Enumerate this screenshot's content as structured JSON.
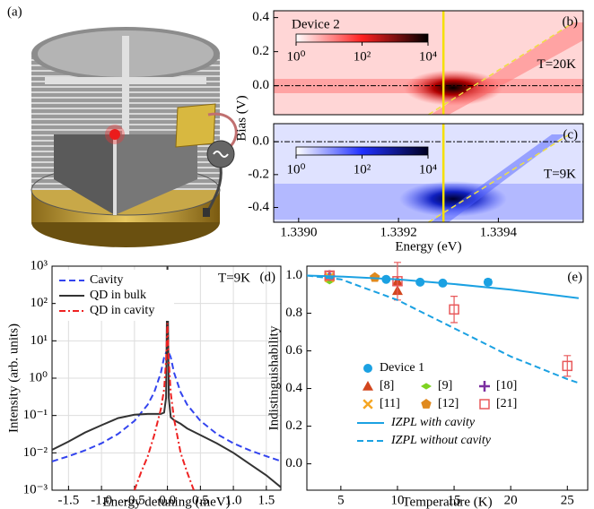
{
  "chart_data": [
    {
      "type": "image",
      "panel_label": "(a)"
    },
    {
      "type": "heatmap",
      "panel_label": "(b)",
      "ylabel": "Bias (V)",
      "xlim": [
        1.33895,
        1.33957
      ],
      "ylim": [
        -0.17,
        0.44
      ],
      "yticks": [
        {
          "value": 0,
          "label": "0.0"
        },
        0.2,
        0.4
      ],
      "colorbar": {
        "label": "Device 2",
        "colors": [
          "#ffffff",
          "#ff2020",
          "#000000"
        ],
        "lim": [
          1,
          10000
        ],
        "ticks": [
          {
            "value": 1,
            "label": "10⁰"
          },
          {
            "value": 100,
            "label": "10²"
          },
          {
            "value": 10000,
            "label": "10⁴"
          }
        ]
      },
      "annotation": "T=20K",
      "hline": 0,
      "vline": 1.33929,
      "diagonal": {
        "x": [
          1.33926,
          1.33955
        ],
        "y": [
          -0.17,
          0.37
        ]
      }
    },
    {
      "type": "heatmap",
      "panel_label": "(c)",
      "xlabel": "Energy (eV)",
      "xlim": [
        1.33895,
        1.33957
      ],
      "ylim": [
        -0.49,
        0.11
      ],
      "xticks": [
        {
          "value": 1.339,
          "label": "1.3390"
        },
        1.3392,
        1.3394
      ],
      "yticks": [
        {
          "value": 0,
          "label": "0.0"
        },
        -0.2,
        -0.4
      ],
      "colorbar": {
        "colors": [
          "#ffffff",
          "#2030ff",
          "#000020"
        ],
        "lim": [
          1,
          10000
        ],
        "ticks": [
          {
            "value": 1,
            "label": "10⁰"
          },
          {
            "value": 100,
            "label": "10²"
          },
          {
            "value": 10000,
            "label": "10⁴"
          }
        ]
      },
      "annotation": "T=9K",
      "hline": 0,
      "vline": 1.33929,
      "diagonal": {
        "x": [
          1.33926,
          1.33954
        ],
        "y": [
          -0.49,
          0.04
        ]
      }
    },
    {
      "type": "line",
      "panel_label": "(d)",
      "xlabel": "Energy detuning (meV)",
      "ylabel": "Intensity (arb. units)",
      "annotation": "T=9K",
      "log_y": true,
      "grid": true,
      "legend": "upper left",
      "xlim": [
        -1.75,
        1.72
      ],
      "ylim": [
        0.001,
        1000
      ],
      "xticks": [
        -1.5,
        {
          "value": -1,
          "label": "-1.0"
        },
        -0.5,
        {
          "value": 0,
          "label": "0.0"
        },
        0.5,
        {
          "value": 1,
          "label": "1.0"
        },
        1.5
      ],
      "yticks": [
        {
          "value": 0.001,
          "label": "10⁻³"
        },
        {
          "value": 0.01,
          "label": "10⁻²"
        },
        {
          "value": 0.1,
          "label": "10⁻¹"
        },
        {
          "value": 1,
          "label": "10⁰"
        },
        {
          "value": 10,
          "label": "10¹"
        },
        {
          "value": 100,
          "label": "10²"
        },
        {
          "value": 1000,
          "label": "10³"
        }
      ],
      "series": [
        {
          "name": "Cavity",
          "color": "#3344ee",
          "style": "dashed",
          "x": [
            -1.75,
            -1.5,
            -1.25,
            -1,
            -0.75,
            -0.5,
            -0.3,
            -0.2,
            -0.1,
            -0.05,
            0,
            0.05,
            0.1,
            0.2,
            0.3,
            0.5,
            0.75,
            1,
            1.25,
            1.5,
            1.72
          ],
          "values": [
            0.0059,
            0.0081,
            0.0116,
            0.018,
            0.032,
            0.072,
            0.195,
            0.42,
            1.4,
            3.6,
            6,
            3.6,
            1.4,
            0.42,
            0.195,
            0.072,
            0.032,
            0.018,
            0.0116,
            0.0081,
            0.006
          ]
        },
        {
          "name": "QD in bulk",
          "color": "#333333",
          "style": "solid",
          "x": [
            -1.75,
            -1.5,
            -1.25,
            -1,
            -0.75,
            -0.5,
            -0.3,
            -0.2,
            -0.1,
            -0.05,
            -0.02,
            0,
            0.02,
            0.05,
            0.1,
            0.2,
            0.3,
            0.5,
            0.75,
            1,
            1.25,
            1.5,
            1.72
          ],
          "values": [
            0.012,
            0.02,
            0.035,
            0.055,
            0.085,
            0.105,
            0.11,
            0.11,
            0.11,
            0.12,
            0.3,
            1000,
            0.3,
            0.09,
            0.075,
            0.06,
            0.045,
            0.03,
            0.018,
            0.01,
            0.005,
            0.0025,
            0.0012
          ]
        },
        {
          "name": "QD in cavity",
          "color": "#ee2222",
          "style": "dashdot",
          "x": [
            -0.5,
            -0.4,
            -0.3,
            -0.2,
            -0.1,
            -0.05,
            -0.02,
            0,
            0.02,
            0.05,
            0.1,
            0.2,
            0.3,
            0.4
          ],
          "values": [
            0.001,
            0.003,
            0.008,
            0.03,
            0.15,
            0.5,
            3,
            30,
            3,
            0.4,
            0.08,
            0.01,
            0.003,
            0.001
          ]
        }
      ]
    },
    {
      "type": "scatter",
      "panel_label": "(e)",
      "xlabel": "Temperature (K)",
      "ylabel": "Indistinguishability",
      "xlim": [
        2,
        26.8
      ],
      "ylim": [
        -0.14,
        1.05
      ],
      "xticks": [
        5,
        10,
        15,
        20,
        25
      ],
      "yticks": [
        {
          "value": 0,
          "label": "0.0"
        },
        0.2,
        0.4,
        0.6,
        0.8,
        {
          "value": 1,
          "label": "1.0"
        }
      ],
      "series": [
        {
          "name": "Device 1",
          "color": "#1ba1e2",
          "marker": "circle",
          "x": [
            4,
            9,
            12,
            14,
            18
          ],
          "values": [
            0.99,
            0.98,
            0.965,
            0.96,
            0.965
          ],
          "errors": [
            0.01,
            0.01,
            0.01,
            0.01,
            0.015
          ]
        },
        {
          "name": "[8]",
          "color": "#d2461e",
          "marker": "triangle",
          "x": [
            10,
            10
          ],
          "values": [
            0.97,
            0.92
          ]
        },
        {
          "name": "[9]",
          "color": "#7ed321",
          "marker": "diamond",
          "x": [
            4
          ],
          "values": [
            0.97
          ]
        },
        {
          "name": "[10]",
          "color": "#7b2fa0",
          "marker": "plus",
          "x": [
            4
          ],
          "values": [
            1.0
          ]
        },
        {
          "name": "[11]",
          "color": "#f5a623",
          "marker": "cross",
          "x": [
            4
          ],
          "values": [
            0.99
          ]
        },
        {
          "name": "[12]",
          "color": "#e08a1e",
          "marker": "pentagon",
          "x": [
            8
          ],
          "values": [
            0.99
          ]
        },
        {
          "name": "[21]",
          "color": "#e8585a",
          "marker": "square",
          "x": [
            4,
            10,
            15,
            25
          ],
          "values": [
            1.0,
            0.97,
            0.82,
            0.52
          ],
          "errors": [
            0.02,
            0.1,
            0.07,
            0.055
          ]
        },
        {
          "name": "IZPL with cavity",
          "color": "#1ba1e2",
          "style": "solid",
          "x": [
            2,
            5,
            10,
            15,
            20,
            26
          ],
          "values": [
            1.0,
            0.995,
            0.98,
            0.955,
            0.925,
            0.88
          ]
        },
        {
          "name": "IZPL without cavity",
          "color": "#1ba1e2",
          "style": "dashed",
          "x": [
            2,
            5,
            10,
            15,
            20,
            25,
            26
          ],
          "values": [
            1.0,
            0.98,
            0.87,
            0.72,
            0.57,
            0.45,
            0.43
          ]
        }
      ]
    }
  ]
}
